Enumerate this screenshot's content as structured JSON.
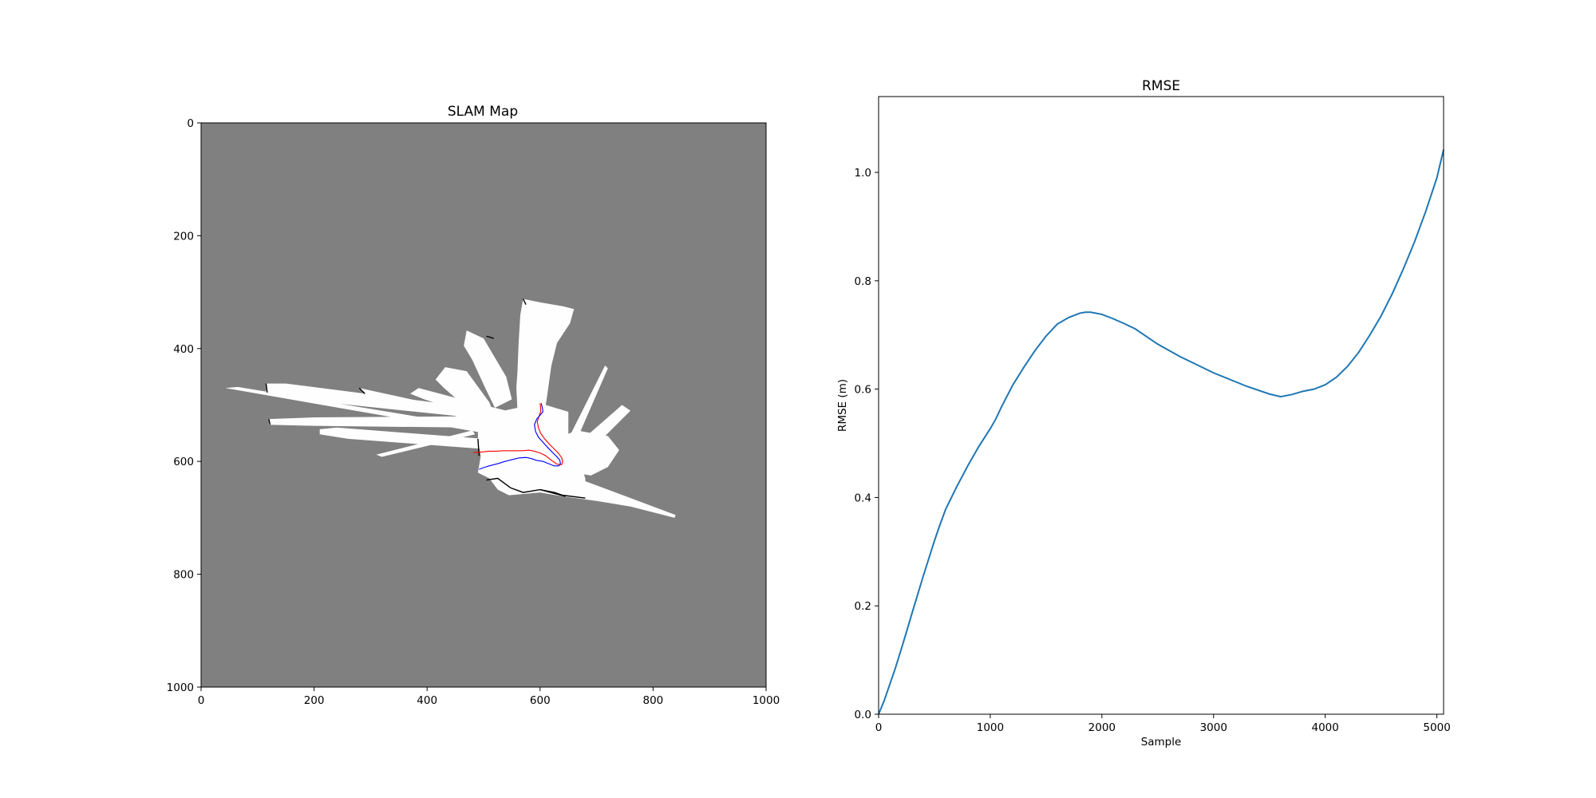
{
  "figure": {
    "background": "#ffffff"
  },
  "chart_data": [
    {
      "type": "heatmap",
      "title": "SLAM Map",
      "xlabel": "",
      "ylabel": "",
      "xlim": [
        0,
        1000
      ],
      "ylim": [
        1000,
        0
      ],
      "xticks": [
        0,
        200,
        400,
        600,
        800,
        1000
      ],
      "yticks": [
        0,
        200,
        400,
        600,
        800,
        1000
      ],
      "colors": {
        "unknown": "#808080",
        "free": "#fefefe",
        "occupied": "#000000",
        "estimated_path": "#0000ff",
        "ground_truth_path": "#ff0000"
      },
      "free_space_polygons": [
        [
          [
            570,
            312
          ],
          [
            600,
            318
          ],
          [
            640,
            325
          ],
          [
            660,
            330
          ],
          [
            653,
            355
          ],
          [
            630,
            390
          ],
          [
            620,
            430
          ],
          [
            613,
            480
          ],
          [
            610,
            500
          ],
          [
            600,
            505
          ],
          [
            560,
            510
          ],
          [
            558,
            470
          ],
          [
            560,
            440
          ],
          [
            562,
            390
          ],
          [
            565,
            340
          ]
        ],
        [
          [
            470,
            368
          ],
          [
            500,
            382
          ],
          [
            540,
            450
          ],
          [
            550,
            490
          ],
          [
            520,
            505
          ],
          [
            503,
            470
          ],
          [
            480,
            420
          ],
          [
            465,
            395
          ]
        ],
        [
          [
            432,
            433
          ],
          [
            470,
            440
          ],
          [
            510,
            495
          ],
          [
            520,
            520
          ],
          [
            500,
            525
          ],
          [
            470,
            505
          ],
          [
            430,
            470
          ],
          [
            415,
            455
          ]
        ],
        [
          [
            385,
            470
          ],
          [
            460,
            490
          ],
          [
            560,
            515
          ],
          [
            555,
            525
          ],
          [
            470,
            515
          ],
          [
            395,
            490
          ],
          [
            370,
            480
          ]
        ],
        [
          [
            280,
            470
          ],
          [
            510,
            520
          ],
          [
            500,
            532
          ],
          [
            290,
            480
          ]
        ],
        [
          [
            115,
            462
          ],
          [
            150,
            462
          ],
          [
            510,
            508
          ],
          [
            505,
            525
          ],
          [
            150,
            488
          ],
          [
            115,
            478
          ]
        ],
        [
          [
            43,
            470
          ],
          [
            65,
            468
          ],
          [
            500,
            540
          ],
          [
            490,
            548
          ]
        ],
        [
          [
            120,
            525
          ],
          [
            200,
            522
          ],
          [
            500,
            520
          ],
          [
            500,
            545
          ],
          [
            470,
            540
          ],
          [
            200,
            537
          ],
          [
            120,
            535
          ]
        ],
        [
          [
            210,
            543
          ],
          [
            240,
            540
          ],
          [
            500,
            560
          ],
          [
            500,
            578
          ],
          [
            260,
            560
          ],
          [
            210,
            552
          ]
        ],
        [
          [
            310,
            588
          ],
          [
            480,
            545
          ],
          [
            485,
            552
          ],
          [
            320,
            592
          ]
        ],
        [
          [
            490,
            520
          ],
          [
            560,
            505
          ],
          [
            610,
            500
          ],
          [
            650,
            512
          ],
          [
            650,
            560
          ],
          [
            665,
            585
          ],
          [
            670,
            600
          ],
          [
            680,
            630
          ],
          [
            680,
            635
          ],
          [
            760,
            665
          ],
          [
            840,
            695
          ],
          [
            838,
            700
          ],
          [
            760,
            680
          ],
          [
            700,
            670
          ],
          [
            640,
            662
          ],
          [
            600,
            655
          ],
          [
            545,
            660
          ],
          [
            525,
            650
          ],
          [
            510,
            630
          ],
          [
            490,
            620
          ],
          [
            495,
            590
          ],
          [
            490,
            560
          ]
        ],
        [
          [
            715,
            430
          ],
          [
            720,
            435
          ],
          [
            670,
            550
          ],
          [
            660,
            558
          ],
          [
            650,
            560
          ]
        ],
        [
          [
            745,
            500
          ],
          [
            760,
            510
          ],
          [
            700,
            570
          ],
          [
            680,
            578
          ],
          [
            665,
            570
          ]
        ],
        [
          [
            640,
            555
          ],
          [
            665,
            545
          ],
          [
            720,
            555
          ],
          [
            740,
            580
          ],
          [
            720,
            610
          ],
          [
            690,
            625
          ],
          [
            660,
            620
          ],
          [
            640,
            600
          ]
        ]
      ],
      "obstacle_polylines": [
        [
          [
            505,
            633
          ],
          [
            525,
            630
          ],
          [
            548,
            647
          ],
          [
            570,
            655
          ],
          [
            600,
            650
          ],
          [
            625,
            655
          ],
          [
            640,
            660
          ],
          [
            680,
            665
          ]
        ],
        [
          [
            115,
            462
          ],
          [
            117,
            478
          ]
        ],
        [
          [
            120,
            525
          ],
          [
            122,
            535
          ]
        ],
        [
          [
            280,
            470
          ],
          [
            290,
            480
          ]
        ],
        [
          [
            570,
            312
          ],
          [
            575,
            322
          ]
        ],
        [
          [
            490,
            560
          ],
          [
            492,
            590
          ]
        ],
        [
          [
            600,
            650
          ],
          [
            645,
            662
          ]
        ],
        [
          [
            505,
            378
          ],
          [
            518,
            382
          ]
        ]
      ],
      "estimated_path": [
        [
          602,
          497
        ],
        [
          604,
          505
        ],
        [
          605,
          512
        ],
        [
          600,
          518
        ],
        [
          594,
          525
        ],
        [
          590,
          535
        ],
        [
          592,
          547
        ],
        [
          597,
          557
        ],
        [
          606,
          567
        ],
        [
          615,
          577
        ],
        [
          623,
          585
        ],
        [
          630,
          592
        ],
        [
          635,
          598
        ],
        [
          636,
          604
        ],
        [
          633,
          608
        ],
        [
          625,
          608
        ],
        [
          615,
          604
        ],
        [
          605,
          600
        ],
        [
          593,
          598
        ],
        [
          585,
          595
        ],
        [
          575,
          593
        ],
        [
          562,
          594
        ],
        [
          550,
          597
        ],
        [
          538,
          600
        ],
        [
          525,
          604
        ],
        [
          510,
          608
        ],
        [
          500,
          611
        ],
        [
          492,
          614
        ]
      ],
      "ground_truth_path": [
        [
          600,
          497
        ],
        [
          601,
          505
        ],
        [
          601,
          512
        ],
        [
          598,
          520
        ],
        [
          595,
          530
        ],
        [
          597,
          540
        ],
        [
          601,
          550
        ],
        [
          608,
          560
        ],
        [
          617,
          570
        ],
        [
          625,
          578
        ],
        [
          632,
          585
        ],
        [
          638,
          593
        ],
        [
          640,
          600
        ],
        [
          638,
          606
        ],
        [
          630,
          605
        ],
        [
          620,
          598
        ],
        [
          610,
          590
        ],
        [
          600,
          585
        ],
        [
          590,
          582
        ],
        [
          580,
          580
        ],
        [
          570,
          581
        ],
        [
          560,
          581
        ],
        [
          548,
          581
        ],
        [
          535,
          581
        ],
        [
          522,
          582
        ],
        [
          510,
          582
        ],
        [
          500,
          583
        ],
        [
          490,
          584
        ],
        [
          482,
          584
        ]
      ]
    },
    {
      "type": "line",
      "title": "RMSE",
      "xlabel": "Sample",
      "ylabel": "RMSE (m)",
      "xlim": [
        0,
        5060
      ],
      "ylim": [
        0,
        1.14
      ],
      "xticks": [
        0,
        1000,
        2000,
        3000,
        4000,
        5000
      ],
      "yticks": [
        0.0,
        0.2,
        0.4,
        0.6,
        0.8,
        1.0
      ],
      "ytick_labels": [
        "0.0",
        "0.2",
        "0.4",
        "0.6",
        "0.8",
        "1.0"
      ],
      "grid": false,
      "series": [
        {
          "color": "#1f77b4",
          "x": [
            0,
            50,
            100,
            150,
            200,
            250,
            300,
            400,
            500,
            550,
            600,
            700,
            800,
            900,
            1000,
            1050,
            1100,
            1200,
            1300,
            1400,
            1500,
            1600,
            1700,
            1800,
            1850,
            1900,
            2000,
            2100,
            2200,
            2300,
            2400,
            2500,
            2700,
            3000,
            3300,
            3500,
            3600,
            3700,
            3800,
            3900,
            4000,
            4100,
            4200,
            4300,
            4400,
            4500,
            4600,
            4700,
            4800,
            4900,
            5000,
            5060
          ],
          "y": [
            0.0,
            0.025,
            0.055,
            0.085,
            0.118,
            0.152,
            0.187,
            0.255,
            0.32,
            0.35,
            0.378,
            0.42,
            0.459,
            0.495,
            0.527,
            0.545,
            0.567,
            0.607,
            0.64,
            0.671,
            0.698,
            0.72,
            0.732,
            0.74,
            0.742,
            0.742,
            0.738,
            0.73,
            0.721,
            0.711,
            0.697,
            0.683,
            0.66,
            0.63,
            0.605,
            0.591,
            0.586,
            0.59,
            0.596,
            0.6,
            0.608,
            0.622,
            0.642,
            0.668,
            0.7,
            0.735,
            0.776,
            0.822,
            0.872,
            0.928,
            0.99,
            1.042
          ]
        }
      ]
    }
  ]
}
